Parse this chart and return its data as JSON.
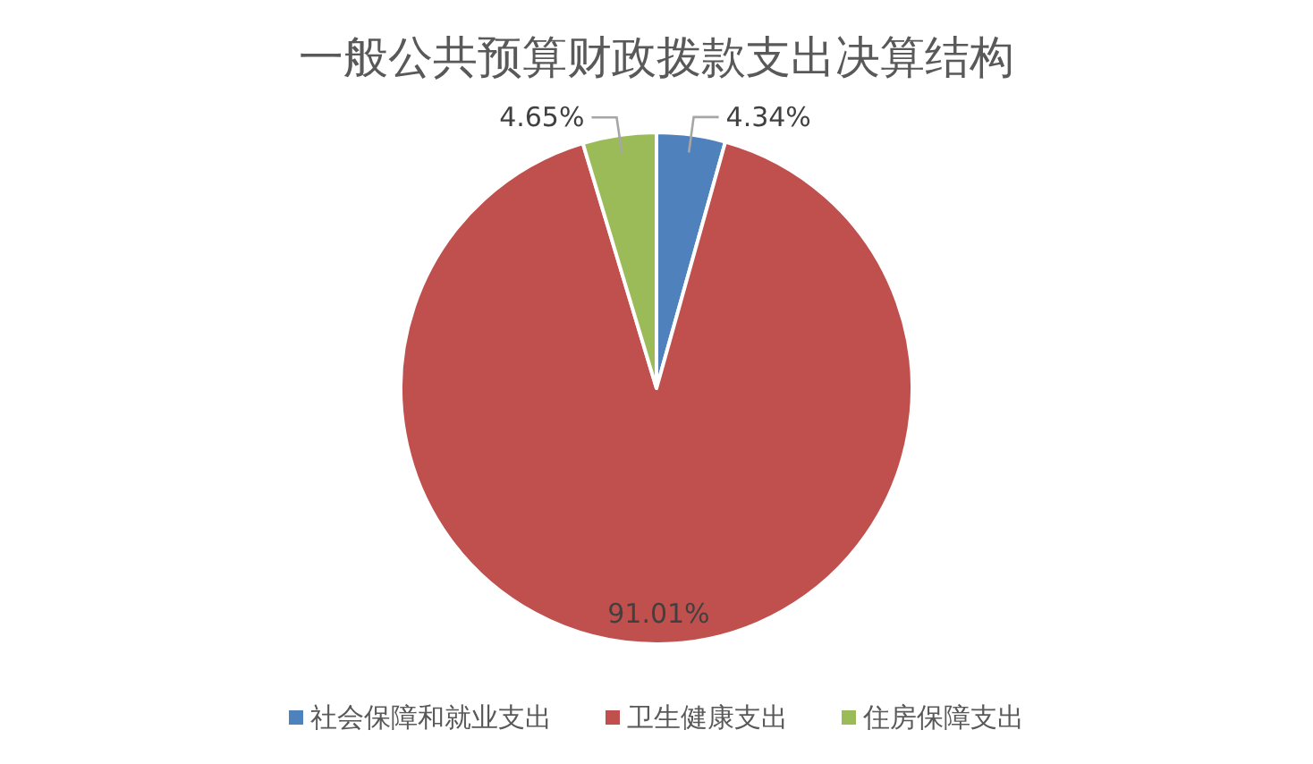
{
  "chart_data": {
    "type": "pie",
    "title": "一般公共预算财政拨款支出决算结构",
    "categories": [
      "社会保障和就业支出",
      "卫生健康支出",
      "住房保障支出"
    ],
    "values": [
      4.34,
      91.01,
      4.65
    ],
    "colors": [
      "#4f81bd",
      "#c0504d",
      "#9bbb59"
    ],
    "value_labels": [
      "4.34%",
      "91.01%",
      "4.65%"
    ],
    "legend": "bottom"
  }
}
